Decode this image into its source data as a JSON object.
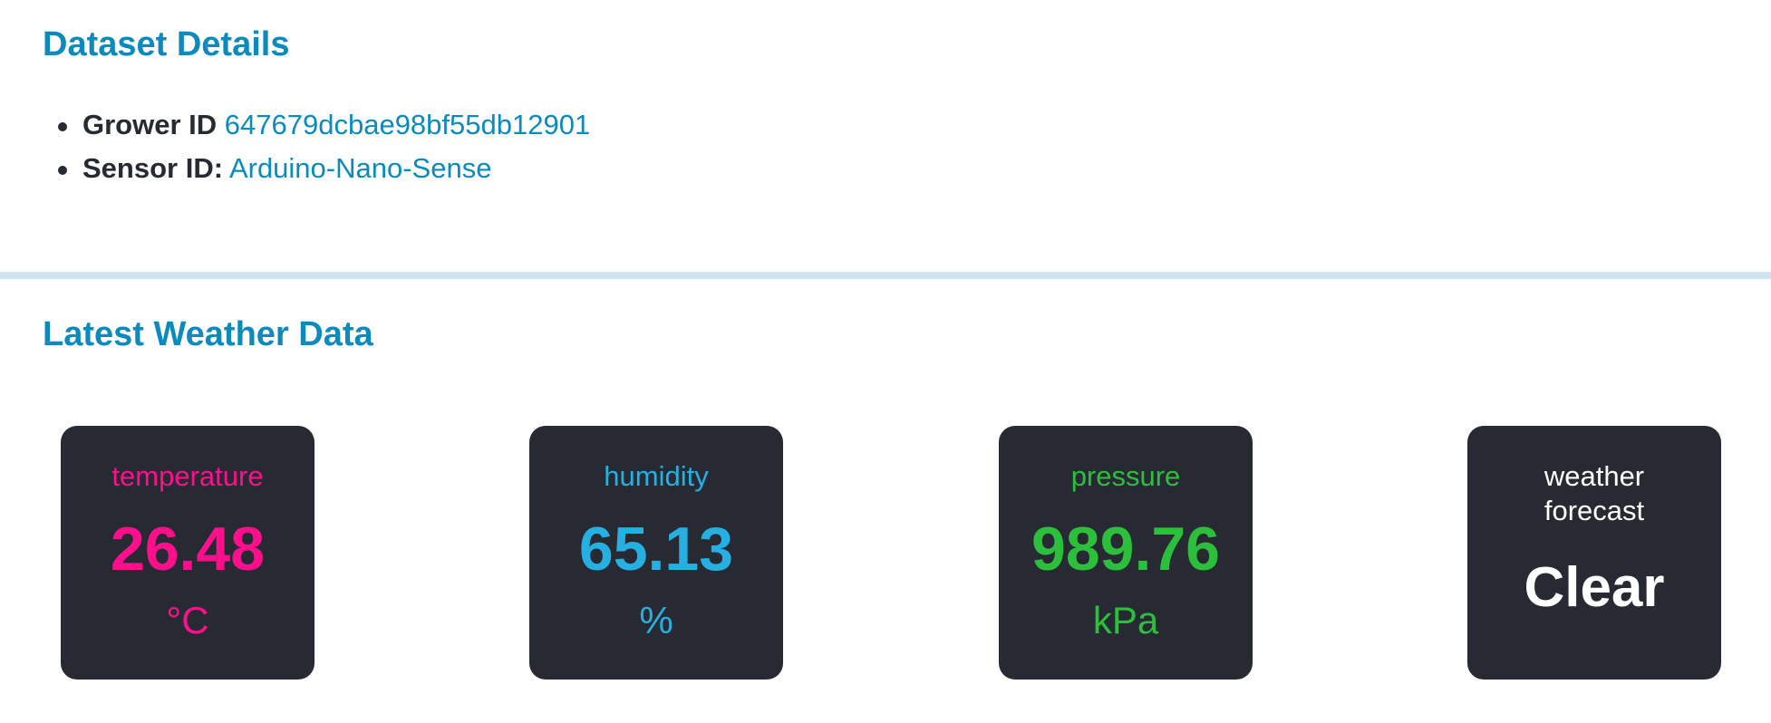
{
  "dataset": {
    "title": "Dataset Details",
    "grower_label": "Grower ID",
    "grower_value": "647679dcbae98bf55db12901",
    "sensor_label": "Sensor ID:",
    "sensor_value": "Arduino-Nano-Sense"
  },
  "weather": {
    "title": "Latest Weather Data",
    "temperature": {
      "label": "temperature",
      "value": "26.48",
      "unit": "°C",
      "color": "#ff0f8c"
    },
    "humidity": {
      "label": "humidity",
      "value": "65.13",
      "unit": "%",
      "color": "#26b0e2"
    },
    "pressure": {
      "label": "pressure",
      "value": "989.76",
      "unit": "kPa",
      "color": "#2bbf3c"
    },
    "forecast": {
      "label": "weather forecast",
      "value": "Clear",
      "color": "#ffffff"
    }
  },
  "colors": {
    "accent": "#0b8bbd",
    "card_background": "#272a33",
    "divider": "#cfe4f1"
  }
}
